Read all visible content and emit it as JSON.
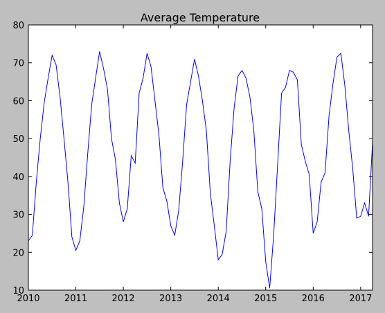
{
  "chart_data": {
    "type": "line",
    "title": "Average Temperature",
    "xlabel": "",
    "ylabel": "",
    "xlim": [
      "2010-01",
      "2017-04"
    ],
    "ylim": [
      10,
      80
    ],
    "xticks": [
      "2010",
      "2011",
      "2012",
      "2013",
      "2014",
      "2015",
      "2016",
      "2017"
    ],
    "yticks": [
      10,
      20,
      30,
      40,
      50,
      60,
      70,
      80
    ],
    "grid": false,
    "line_color": "#0000ff",
    "figure_background": "#bfbfbf",
    "axes_background": "#ffffff",
    "series": [
      {
        "x": [
          "2010-01",
          "2010-02",
          "2010-03",
          "2010-04",
          "2010-05",
          "2010-06",
          "2010-07",
          "2010-08",
          "2010-09",
          "2010-10",
          "2010-11",
          "2010-12",
          "2011-01",
          "2011-02",
          "2011-03",
          "2011-04",
          "2011-05",
          "2011-06",
          "2011-07",
          "2011-08",
          "2011-09",
          "2011-10",
          "2011-11",
          "2011-12",
          "2012-01",
          "2012-02",
          "2012-03",
          "2012-04",
          "2012-05",
          "2012-06",
          "2012-07",
          "2012-08",
          "2012-09",
          "2012-10",
          "2012-11",
          "2012-12",
          "2013-01",
          "2013-02",
          "2013-03",
          "2013-04",
          "2013-05",
          "2013-06",
          "2013-07",
          "2013-08",
          "2013-09",
          "2013-10",
          "2013-11",
          "2013-12",
          "2014-01",
          "2014-02",
          "2014-03",
          "2014-04",
          "2014-05",
          "2014-06",
          "2014-07",
          "2014-08",
          "2014-09",
          "2014-10",
          "2014-11",
          "2014-12",
          "2015-01",
          "2015-02",
          "2015-03",
          "2015-04",
          "2015-05",
          "2015-06",
          "2015-07",
          "2015-08",
          "2015-09",
          "2015-10",
          "2015-11",
          "2015-12",
          "2016-01",
          "2016-02",
          "2016-03",
          "2016-04",
          "2016-05",
          "2016-06",
          "2016-07",
          "2016-08",
          "2016-09",
          "2016-10",
          "2016-11",
          "2016-12",
          "2017-01",
          "2017-02",
          "2017-03",
          "2017-04"
        ],
        "values": [
          23.0,
          24.5,
          38.5,
          50.0,
          59.5,
          66.0,
          72.0,
          69.5,
          61.0,
          50.0,
          38.5,
          24.0,
          20.5,
          23.0,
          32.0,
          46.0,
          59.0,
          66.0,
          73.0,
          68.5,
          63.0,
          50.0,
          44.5,
          33.0,
          28.0,
          31.5,
          45.5,
          43.5,
          62.0,
          66.0,
          72.5,
          69.0,
          60.0,
          51.0,
          37.0,
          33.5,
          27.0,
          24.5,
          31.0,
          44.0,
          59.0,
          65.0,
          71.0,
          66.5,
          60.0,
          52.0,
          35.5,
          27.0,
          18.0,
          19.5,
          25.5,
          44.0,
          58.0,
          66.5,
          68.0,
          66.0,
          61.0,
          52.0,
          36.0,
          31.5,
          17.5,
          10.5,
          24.5,
          43.0,
          62.0,
          63.5,
          68.0,
          67.5,
          65.5,
          48.5,
          44.0,
          40.5,
          25.0,
          28.0,
          38.5,
          41.0,
          56.0,
          64.5,
          71.5,
          72.5,
          64.0,
          52.0,
          42.0,
          29.0,
          29.5,
          33.0,
          29.5,
          49.0
        ]
      }
    ]
  }
}
